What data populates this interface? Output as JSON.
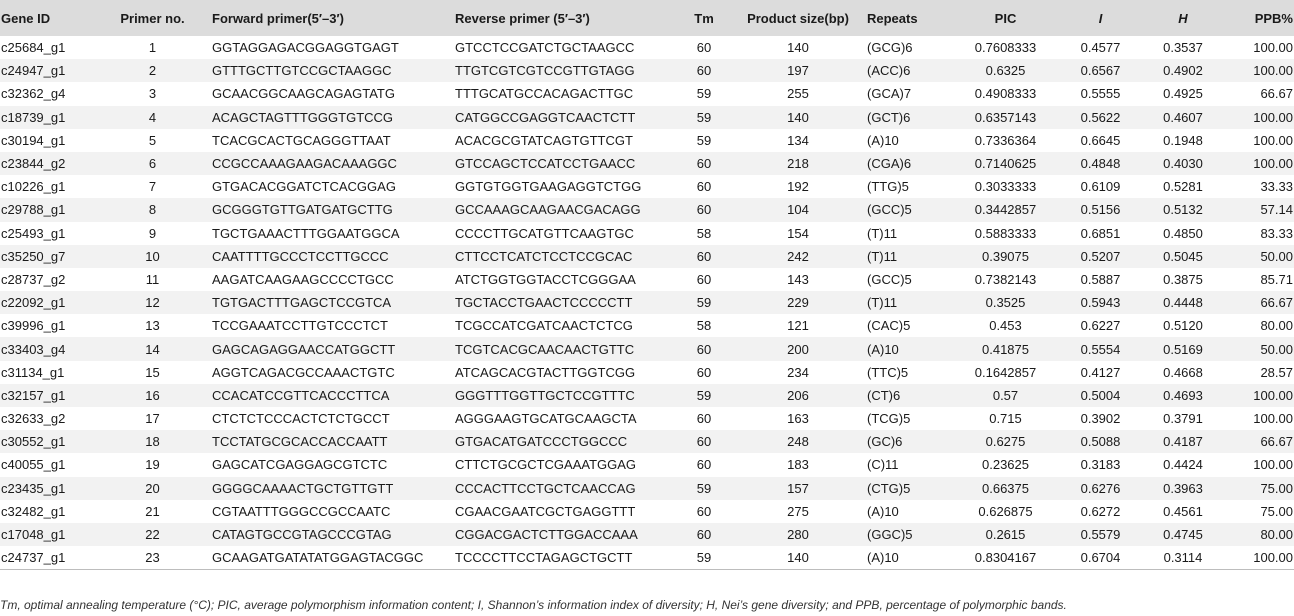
{
  "headers": {
    "gene_id": "Gene ID",
    "primer_no": "Primer no.",
    "forward": "Forward primer(5′–3′)",
    "reverse": "Reverse primer (5′–3′)",
    "tm": "Tm",
    "size": "Product size(bp)",
    "repeats": "Repeats",
    "pic": "PIC",
    "i": "I",
    "h": "H",
    "ppb": "PPB%"
  },
  "rows": [
    [
      "c25684_g1",
      "1",
      "GGTAGGAGACGGAGGTGAGT",
      "GTCCTCCGATCTGCTAAGCC",
      "60",
      "140",
      "(GCG)6",
      "0.7608333",
      "0.4577",
      "0.3537",
      "100.00"
    ],
    [
      "c24947_g1",
      "2",
      "GTTTGCTTGTCCGCTAAGGC",
      "TTGTCGTCGTCCGTTGTAGG",
      "60",
      "197",
      "(ACC)6",
      "0.6325",
      "0.6567",
      "0.4902",
      "100.00"
    ],
    [
      "c32362_g4",
      "3",
      "GCAACGGCAAGCAGAGTATG",
      "TTTGCATGCCACAGACTTGC",
      "59",
      "255",
      "(GCA)7",
      "0.4908333",
      "0.5555",
      "0.4925",
      "66.67"
    ],
    [
      "c18739_g1",
      "4",
      "ACAGCTAGTTTGGGTGTCCG",
      "CATGGCCGAGGTCAACTCTT",
      "59",
      "140",
      "(GCT)6",
      "0.6357143",
      "0.5622",
      "0.4607",
      "100.00"
    ],
    [
      "c30194_g1",
      "5",
      "TCACGCACTGCAGGGTTAAT",
      "ACACGCGTATCAGTGTTCGT",
      "59",
      "134",
      "(A)10",
      "0.7336364",
      "0.6645",
      "0.1948",
      "100.00"
    ],
    [
      "c23844_g2",
      "6",
      "CCGCCAAAGAAGACAAAGGC",
      "GTCCAGCTCCATCCTGAACC",
      "60",
      "218",
      "(CGA)6",
      "0.7140625",
      "0.4848",
      "0.4030",
      "100.00"
    ],
    [
      "c10226_g1",
      "7",
      "GTGACACGGATCTCACGGAG",
      "GGTGTGGTGAAGAGGTCTGG",
      "60",
      "192",
      "(TTG)5",
      "0.3033333",
      "0.6109",
      "0.5281",
      "33.33"
    ],
    [
      "c29788_g1",
      "8",
      "GCGGGTGTTGATGATGCTTG",
      "GCCAAAGCAAGAACGACAGG",
      "60",
      "104",
      "(GCC)5",
      "0.3442857",
      "0.5156",
      "0.5132",
      "57.14"
    ],
    [
      "c25493_g1",
      "9",
      "TGCTGAAACTTTGGAATGGCA",
      "CCCCTTGCATGTTCAAGTGC",
      "58",
      "154",
      "(T)11",
      "0.5883333",
      "0.6851",
      "0.4850",
      "83.33"
    ],
    [
      "c35250_g7",
      "10",
      "CAATTTTGCCCTCCTTGCCC",
      "CTTCCTCATCTCCTCCGCAC",
      "60",
      "242",
      "(T)11",
      "0.39075",
      "0.5207",
      "0.5045",
      "50.00"
    ],
    [
      "c28737_g2",
      "11",
      "AAGATCAAGAAGCCCCTGCC",
      "ATCTGGTGGTACCTCGGGAA",
      "60",
      "143",
      "(GCC)5",
      "0.7382143",
      "0.5887",
      "0.3875",
      "85.71"
    ],
    [
      "c22092_g1",
      "12",
      "TGTGACTTTGAGCTCCGTCA",
      "TGCTACCTGAACTCCCCCTT",
      "59",
      "229",
      "(T)11",
      "0.3525",
      "0.5943",
      "0.4448",
      "66.67"
    ],
    [
      "c39996_g1",
      "13",
      "TCCGAAATCCTTGTCCCTCT",
      "TCGCCATCGATCAACTCTCG",
      "58",
      "121",
      "(CAC)5",
      "0.453",
      "0.6227",
      "0.5120",
      "80.00"
    ],
    [
      "c33403_g4",
      "14",
      "GAGCAGAGGAACCATGGCTT",
      "TCGTCACGCAACAACTGTTC",
      "60",
      "200",
      "(A)10",
      "0.41875",
      "0.5554",
      "0.5169",
      "50.00"
    ],
    [
      "c31134_g1",
      "15",
      "AGGTCAGACGCCAAACTGTC",
      "ATCAGCACGTACTTGGTCGG",
      "60",
      "234",
      "(TTC)5",
      "0.1642857",
      "0.4127",
      "0.4668",
      "28.57"
    ],
    [
      "c32157_g1",
      "16",
      "CCACATCCGTTCACCCTTCA",
      "GGGTTTGGTTGCTCCGTTTC",
      "59",
      "206",
      "(CT)6",
      "0.57",
      "0.5004",
      "0.4693",
      "100.00"
    ],
    [
      "c32633_g2",
      "17",
      "CTCTCTCCCACTCTCTGCCT",
      "AGGGAAGTGCATGCAAGCTA",
      "60",
      "163",
      "(TCG)5",
      "0.715",
      "0.3902",
      "0.3791",
      "100.00"
    ],
    [
      "c30552_g1",
      "18",
      "TCCTATGCGCACCACCAATT",
      "GTGACATGATCCCTGGCCC",
      "60",
      "248",
      "(GC)6",
      "0.6275",
      "0.5088",
      "0.4187",
      "66.67"
    ],
    [
      "c40055_g1",
      "19",
      "GAGCATCGAGGAGCGTCTC",
      "CTTCTGCGCTCGAAATGGAG",
      "60",
      "183",
      "(C)11",
      "0.23625",
      "0.3183",
      "0.4424",
      "100.00"
    ],
    [
      "c23435_g1",
      "20",
      "GGGGCAAAACTGCTGTTGTT",
      "CCCACTTCCTGCTCAACCAG",
      "59",
      "157",
      "(CTG)5",
      "0.66375",
      "0.6276",
      "0.3963",
      "75.00"
    ],
    [
      "c32482_g1",
      "21",
      "CGTAATTTGGGCCGCCAATC",
      "CGAACGAATCGCTGAGGTTT",
      "60",
      "275",
      "(A)10",
      "0.626875",
      "0.6272",
      "0.4561",
      "75.00"
    ],
    [
      "c17048_g1",
      "22",
      "CATAGTGCCGTAGCCCGTAG",
      "CGGACGACTCTTGGACCAAA",
      "60",
      "280",
      "(GGC)5",
      "0.2615",
      "0.5579",
      "0.4745",
      "80.00"
    ],
    [
      "c24737_g1",
      "23",
      "GCAAGATGATATATGGAGTACGGC",
      "TCCCCTTCCTAGAGCTGCTT",
      "59",
      "140",
      "(A)10",
      "0.8304167",
      "0.6704",
      "0.3114",
      "100.00"
    ]
  ],
  "footnote": "Tm, optimal annealing temperature (°C); PIC, average polymorphism information content; I, Shannon’s information index of diversity; H, Nei’s gene diversity; and PPB, percentage of polymorphic bands."
}
